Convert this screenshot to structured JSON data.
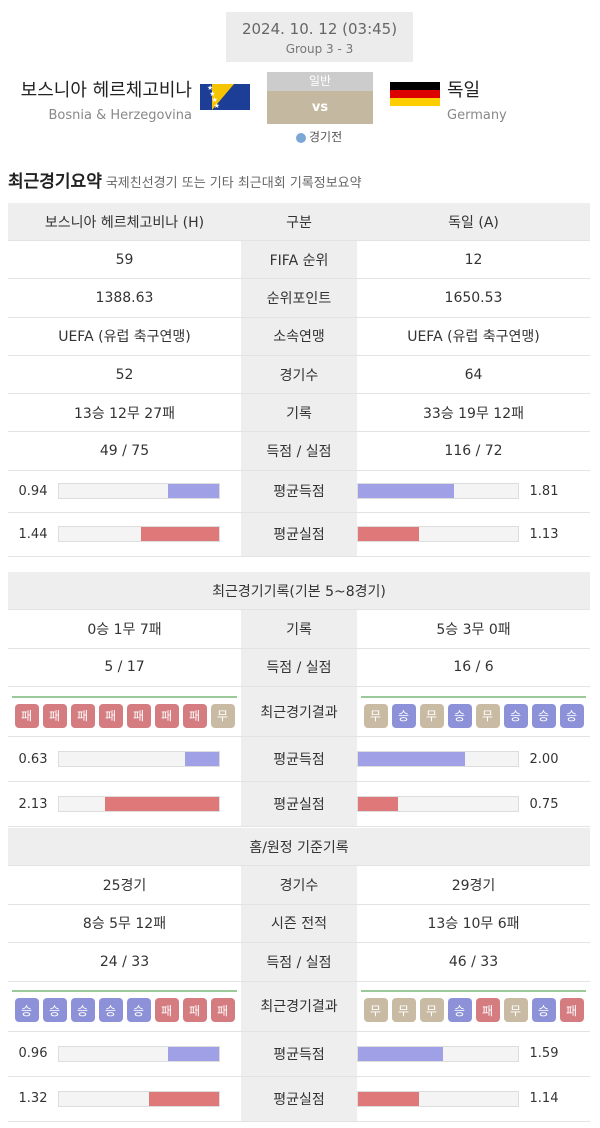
{
  "match": {
    "datetime": "2024. 10. 12 (03:45)",
    "group": "Group 3 - 3",
    "type": "일반",
    "vs": "vs",
    "status": "경기전"
  },
  "home": {
    "name_ko": "보스니아 헤르체고비나",
    "name_en": "Bosnia & Herzegovina"
  },
  "away": {
    "name_ko": "독일",
    "name_en": "Germany"
  },
  "section": {
    "title": "최근경기요약",
    "subtitle": "국제친선경기 또는 기타 최근대회 기록정보요약"
  },
  "summary": {
    "header": [
      "보스니아 헤르체고비나 (H)",
      "구분",
      "독일 (A)"
    ],
    "rows": [
      [
        "59",
        "FIFA 순위",
        "12"
      ],
      [
        "1388.63",
        "순위포인트",
        "1650.53"
      ],
      [
        "UEFA (유럽 축구연맹)",
        "소속연맹",
        "UEFA (유럽 축구연맹)"
      ],
      [
        "52",
        "경기수",
        "64"
      ],
      [
        "13승 12무 27패",
        "기록",
        "33승 19무 12패"
      ],
      [
        "49 / 75",
        "득점 / 실점",
        "116 / 72"
      ]
    ],
    "avg_scored": {
      "label": "평균득점",
      "home": "0.94",
      "away": "1.81",
      "home_frac": 0.32,
      "away_frac": 0.6
    },
    "avg_conceded": {
      "label": "평균실점",
      "home": "1.44",
      "away": "1.13",
      "home_frac": 0.49,
      "away_frac": 0.38
    }
  },
  "recent": {
    "title": "최근경기기록(기본 5~8경기)",
    "rows": [
      [
        "0승 1무 7패",
        "기록",
        "5승 3무 0패"
      ],
      [
        "5 / 17",
        "득점 / 실점",
        "16 / 6"
      ]
    ],
    "result_label": "최근경기결과",
    "home_results": [
      "패",
      "패",
      "패",
      "패",
      "패",
      "패",
      "패",
      "무"
    ],
    "away_results": [
      "무",
      "승",
      "무",
      "승",
      "무",
      "승",
      "승",
      "승"
    ],
    "avg_scored": {
      "label": "평균득점",
      "home": "0.63",
      "away": "2.00",
      "home_frac": 0.21,
      "away_frac": 0.67
    },
    "avg_conceded": {
      "label": "평균실점",
      "home": "2.13",
      "away": "0.75",
      "home_frac": 0.71,
      "away_frac": 0.25
    }
  },
  "homeaway": {
    "title": "홈/원정 기준기록",
    "rows": [
      [
        "25경기",
        "경기수",
        "29경기"
      ],
      [
        "8승 5무 12패",
        "시즌 전적",
        "13승 10무 6패"
      ],
      [
        "24 / 33",
        "득점 / 실점",
        "46 / 33"
      ]
    ],
    "result_label": "최근경기결과",
    "home_results": [
      "승",
      "승",
      "승",
      "승",
      "승",
      "패",
      "패",
      "패"
    ],
    "away_results": [
      "무",
      "무",
      "무",
      "승",
      "패",
      "무",
      "승",
      "패"
    ],
    "avg_scored": {
      "label": "평균득점",
      "home": "0.96",
      "away": "1.59",
      "home_frac": 0.32,
      "away_frac": 0.53
    },
    "avg_conceded": {
      "label": "평균실점",
      "home": "1.32",
      "away": "1.14",
      "home_frac": 0.44,
      "away_frac": 0.38
    }
  },
  "colors": {
    "win": "#8d92d8",
    "loss": "#d47c80",
    "draw": "#c9bba3",
    "scored_bar": "#9fa0e6",
    "conceded_bar": "#df7878"
  }
}
